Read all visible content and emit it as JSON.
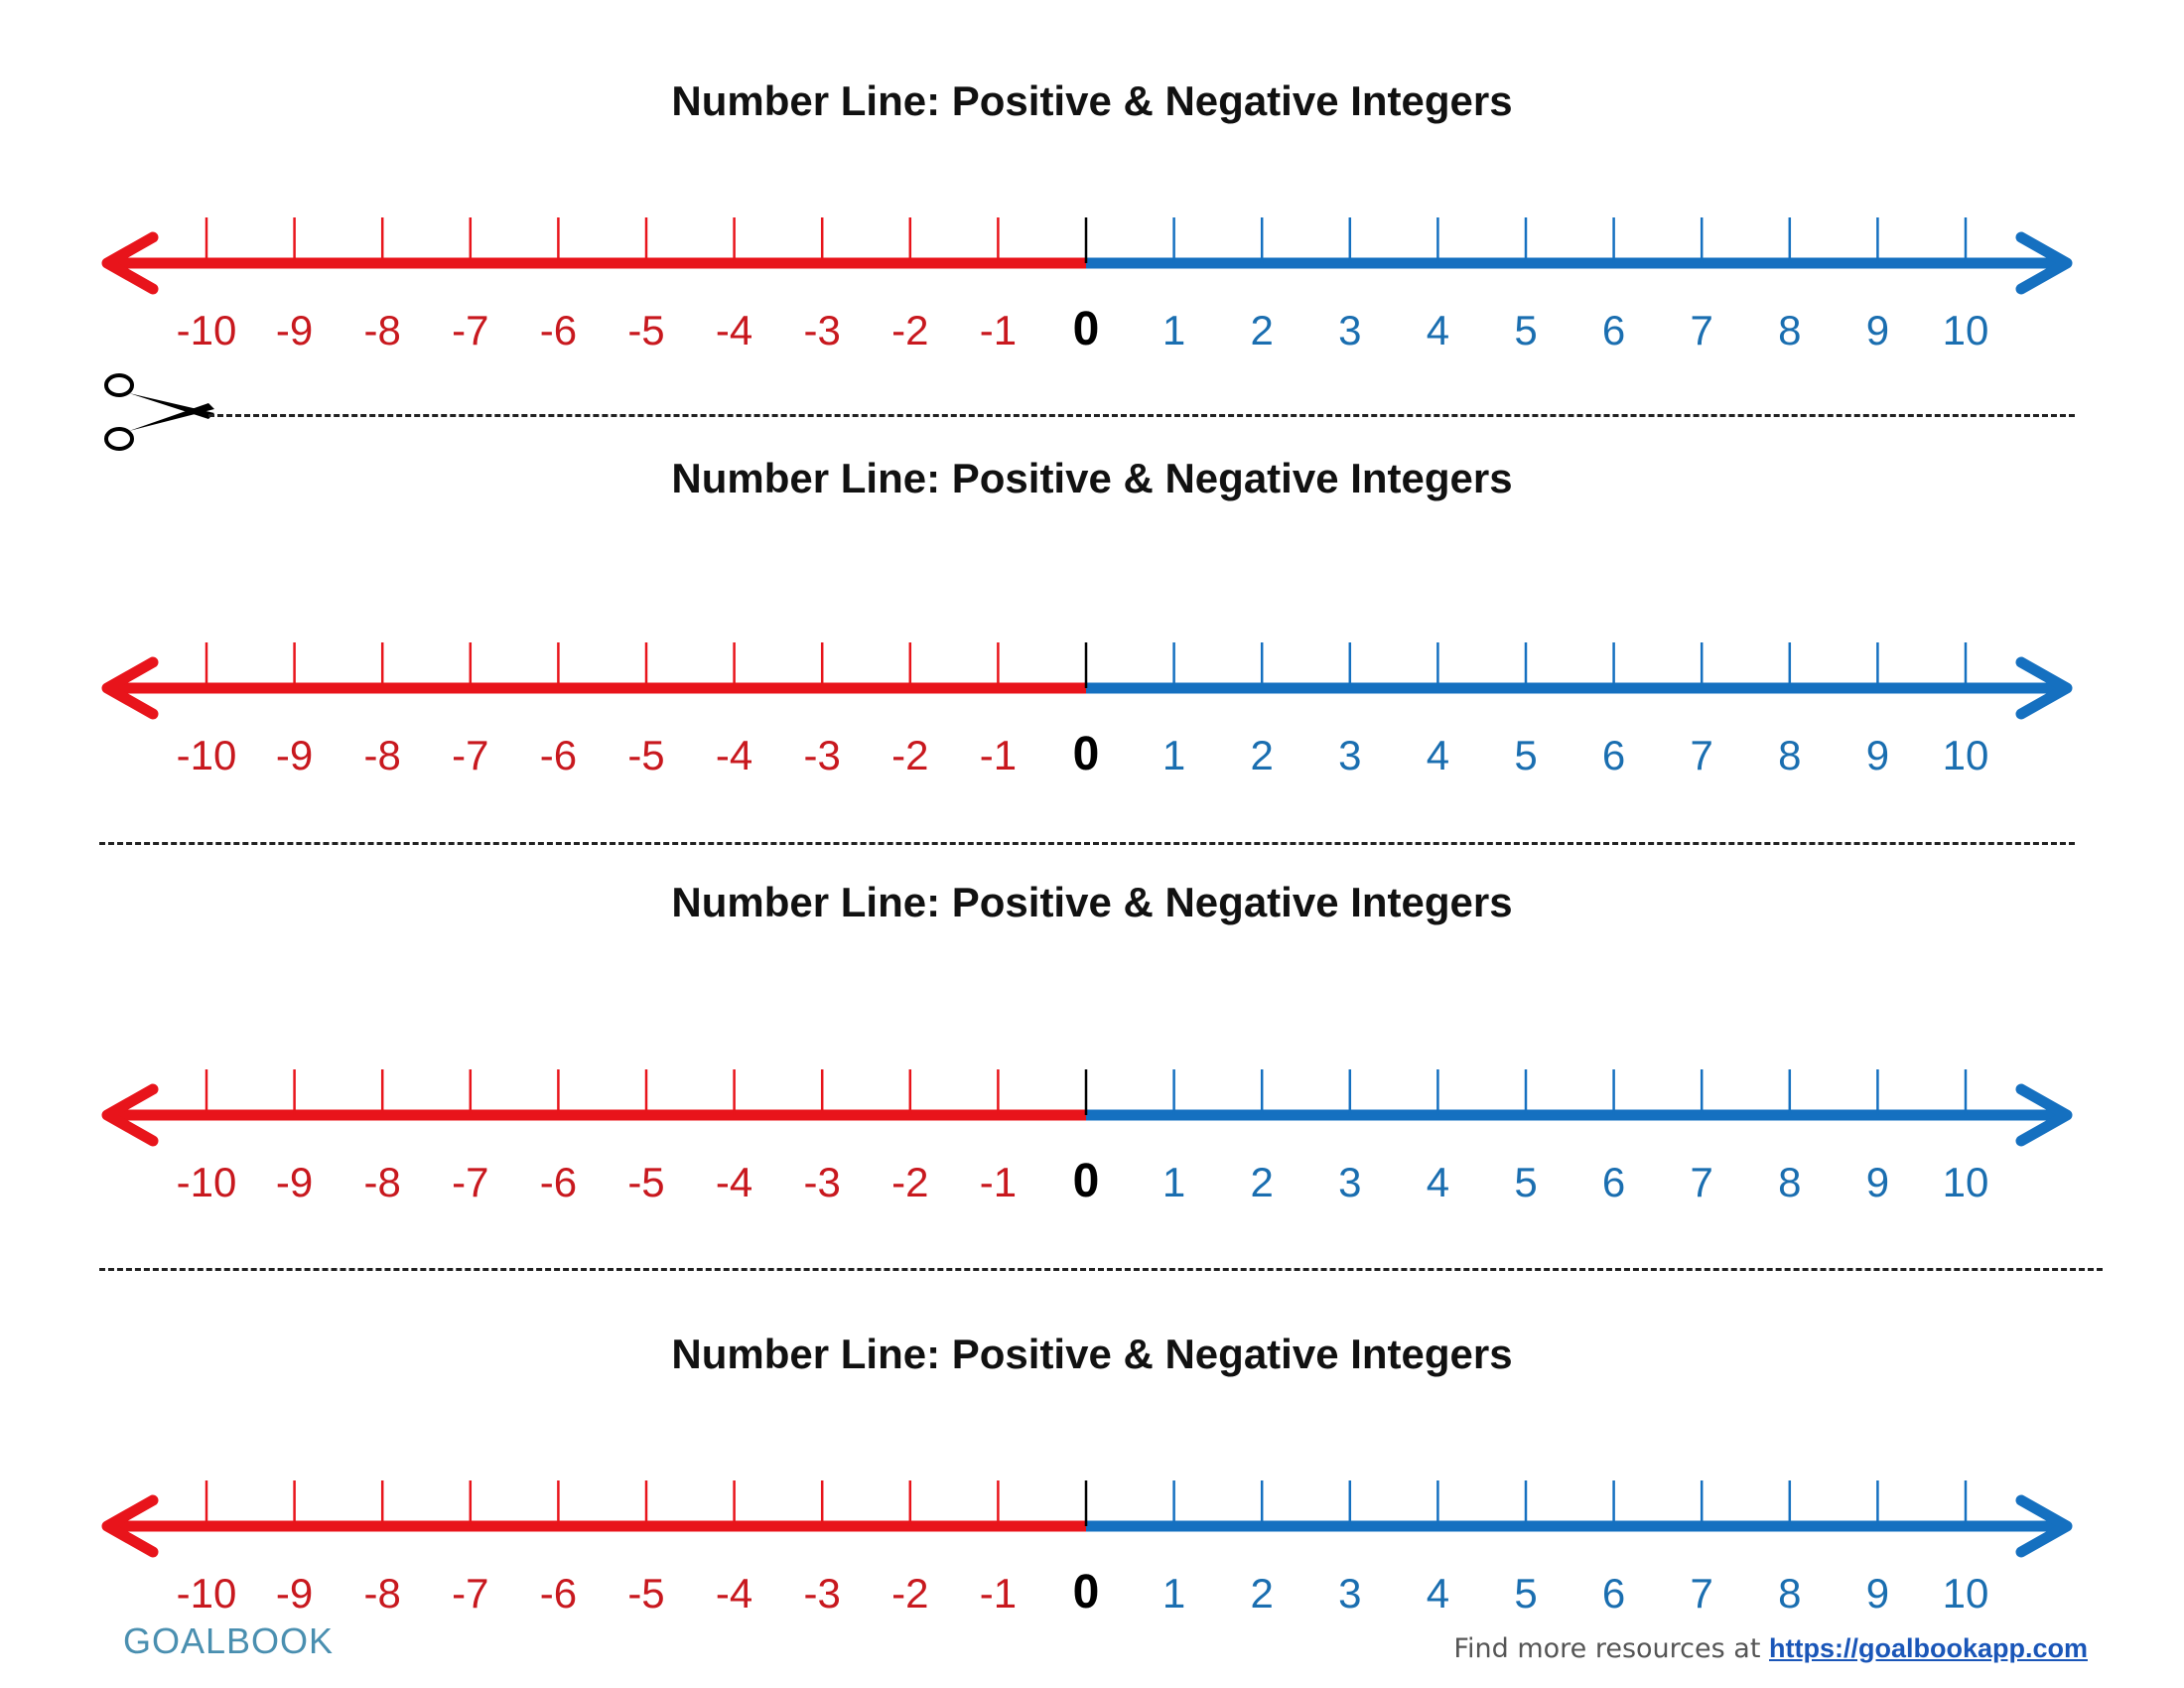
{
  "title": "Number Line: Positive & Negative Integers",
  "number_line": {
    "min": -10,
    "max": 10,
    "step": 1,
    "negative_color": "#e8141b",
    "positive_color": "#1570c0",
    "zero_color": "#000000",
    "negative_label_color": "#c8181e",
    "positive_label_color": "#1a6eb0"
  },
  "strips": [
    {
      "title": "Number Line: Positive & Negative Integers"
    },
    {
      "title": "Number Line: Positive & Negative Integers"
    },
    {
      "title": "Number Line: Positive & Negative Integers"
    },
    {
      "title": "Number Line: Positive & Negative Integers"
    }
  ],
  "icons": {
    "cut_marker": "scissors-icon"
  },
  "footer": {
    "logo": "GOALBOOK",
    "text": "Find more resources at",
    "url": "https://goalbookapp.com"
  }
}
